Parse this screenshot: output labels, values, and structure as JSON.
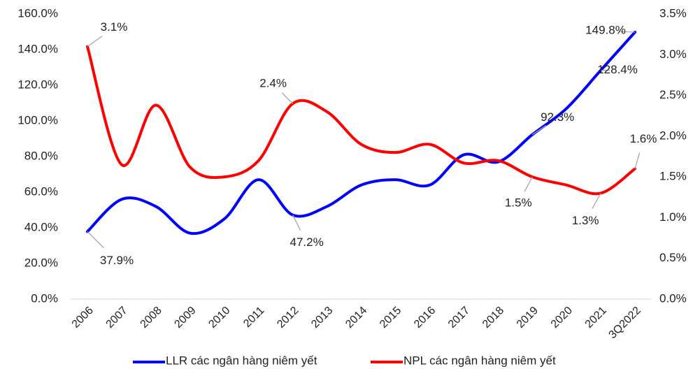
{
  "chart_data": {
    "type": "line",
    "categories": [
      "2006",
      "2007",
      "2008",
      "2009",
      "2010",
      "2011",
      "2012",
      "2013",
      "2014",
      "2015",
      "2016",
      "2017",
      "2018",
      "2019",
      "2020",
      "2021",
      "3Q2022"
    ],
    "series": [
      {
        "name": "LLR các ngân hàng niêm yết",
        "color": "#0000ff",
        "axis": "y",
        "values": [
          37.9,
          56,
          52,
          37,
          45,
          67,
          47.2,
          52,
          64,
          67,
          64,
          81,
          77,
          92.3,
          107,
          128.4,
          149.8
        ],
        "value_labels": [
          "37.9%",
          null,
          null,
          null,
          null,
          null,
          "47.2%",
          null,
          null,
          null,
          null,
          null,
          null,
          "92.3%",
          null,
          "128.4%",
          "149.8%"
        ]
      },
      {
        "name": "NPL các ngân hàng niêm yết",
        "color": "#ff0000",
        "axis": "y2",
        "values": [
          3.1,
          1.65,
          2.38,
          1.62,
          1.5,
          1.7,
          2.4,
          2.3,
          1.9,
          1.8,
          1.9,
          1.67,
          1.7,
          1.5,
          1.4,
          1.3,
          1.6
        ],
        "value_labels": [
          "3.1%",
          null,
          null,
          null,
          null,
          null,
          "2.4%",
          null,
          null,
          null,
          null,
          null,
          null,
          "1.5%",
          null,
          "1.3%",
          "1.6%"
        ]
      }
    ],
    "ylim": [
      0,
      160
    ],
    "yticks": [
      {
        "value": 0,
        "label": "0.0%"
      },
      {
        "value": 20,
        "label": "20.0%"
      },
      {
        "value": 40,
        "label": "40.0%"
      },
      {
        "value": 60,
        "label": "60.0%"
      },
      {
        "value": 80,
        "label": "80.0%"
      },
      {
        "value": 100,
        "label": "100.0%"
      },
      {
        "value": 120,
        "label": "120.0%"
      },
      {
        "value": 140,
        "label": "140.0%"
      },
      {
        "value": 160,
        "label": "160.0%"
      }
    ],
    "y2lim": [
      0,
      3.5
    ],
    "y2ticks": [
      {
        "value": 0,
        "label": "0.0%"
      },
      {
        "value": 0.5,
        "label": "0.5%"
      },
      {
        "value": 1,
        "label": "1.0%"
      },
      {
        "value": 1.5,
        "label": "1.5%"
      },
      {
        "value": 2,
        "label": "2.0%"
      },
      {
        "value": 2.5,
        "label": "2.5%"
      },
      {
        "value": 3,
        "label": "3.0%"
      },
      {
        "value": 3.5,
        "label": "3.5%"
      }
    ],
    "legend": "bottom"
  }
}
